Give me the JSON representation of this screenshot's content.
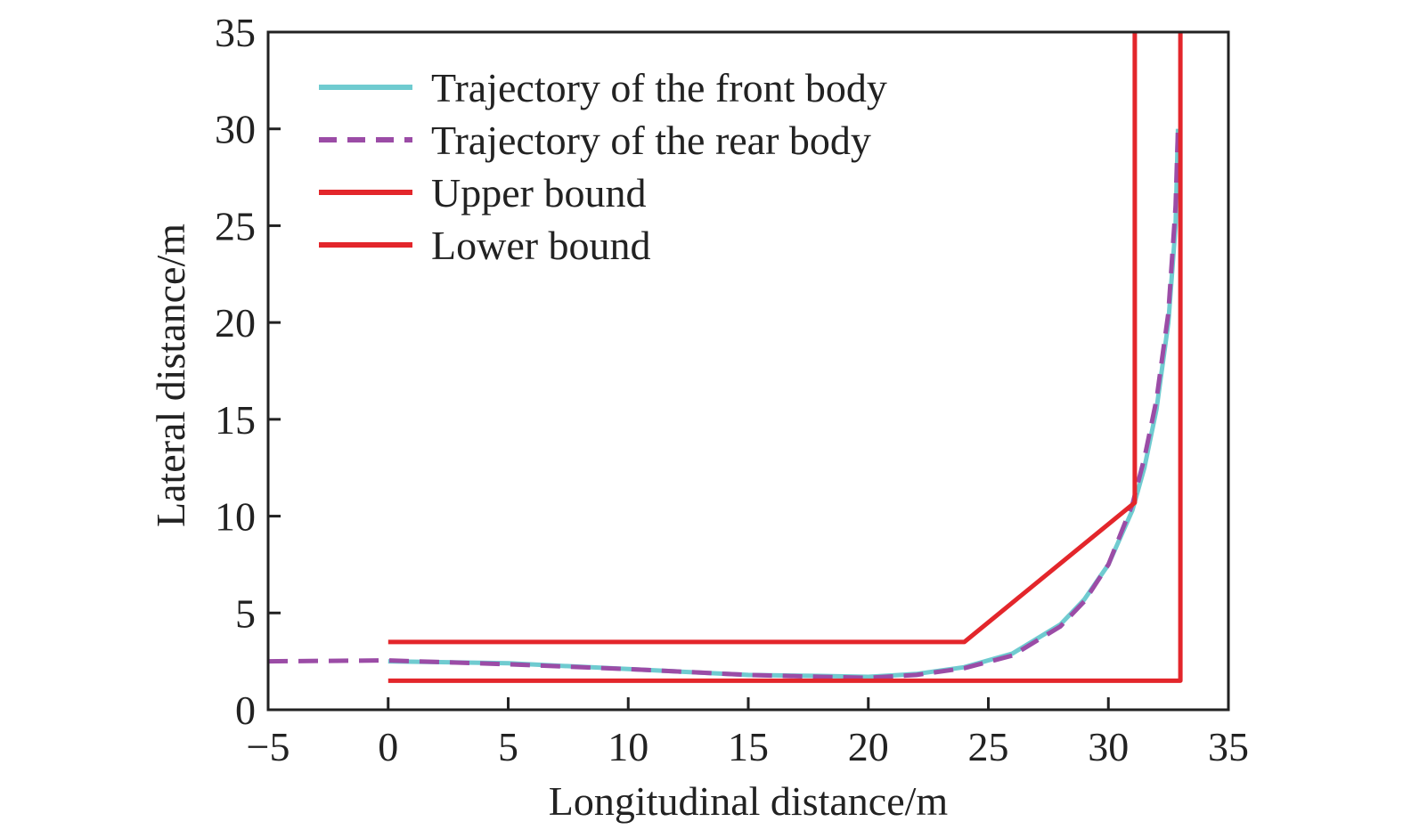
{
  "chart_data": {
    "type": "line",
    "title": "",
    "xlabel": "Longitudinal distance/m",
    "ylabel": "Lateral distance/m",
    "xlim": [
      -5,
      35
    ],
    "ylim": [
      0,
      35
    ],
    "xticks": [
      -5,
      0,
      5,
      10,
      15,
      20,
      25,
      30,
      35
    ],
    "yticks": [
      0,
      5,
      10,
      15,
      20,
      25,
      30,
      35
    ],
    "xtick_labels": [
      "−5",
      "0",
      "5",
      "10",
      "15",
      "20",
      "25",
      "30",
      "35"
    ],
    "ytick_labels": [
      "0",
      "5",
      "10",
      "15",
      "20",
      "25",
      "30",
      "35"
    ],
    "grid": false,
    "legend_position": "top-left",
    "series": [
      {
        "name": "Trajectory of the front body",
        "color": "#6fcbd0",
        "style": "solid",
        "points": [
          [
            0,
            2.5
          ],
          [
            5,
            2.4
          ],
          [
            10,
            2.1
          ],
          [
            15,
            1.8
          ],
          [
            18,
            1.75
          ],
          [
            20,
            1.7
          ],
          [
            22,
            1.85
          ],
          [
            24,
            2.2
          ],
          [
            26,
            2.9
          ],
          [
            28,
            4.4
          ],
          [
            29,
            5.7
          ],
          [
            30,
            7.5
          ],
          [
            31,
            10.3
          ],
          [
            31.5,
            12.5
          ],
          [
            32,
            15.5
          ],
          [
            32.5,
            20
          ],
          [
            32.8,
            25
          ],
          [
            32.9,
            30
          ]
        ]
      },
      {
        "name": "Trajectory of the rear body",
        "color": "#9b4ca6",
        "style": "dashed",
        "points": [
          [
            -5,
            2.5
          ],
          [
            0,
            2.55
          ],
          [
            5,
            2.35
          ],
          [
            10,
            2.1
          ],
          [
            15,
            1.8
          ],
          [
            18,
            1.7
          ],
          [
            20,
            1.65
          ],
          [
            22,
            1.8
          ],
          [
            24,
            2.15
          ],
          [
            26,
            2.8
          ],
          [
            28,
            4.3
          ],
          [
            29,
            5.6
          ],
          [
            30,
            7.5
          ],
          [
            31,
            10.6
          ],
          [
            31.5,
            13
          ],
          [
            32,
            16
          ],
          [
            32.5,
            20.5
          ],
          [
            32.8,
            26
          ],
          [
            32.9,
            30
          ]
        ]
      },
      {
        "name": "Upper bound",
        "color": "#e3262b",
        "style": "solid",
        "points": [
          [
            0,
            3.5
          ],
          [
            24,
            3.5
          ],
          [
            31.1,
            10.7
          ],
          [
            31.1,
            35
          ]
        ]
      },
      {
        "name": "Lower bound",
        "color": "#e3262b",
        "style": "solid",
        "points": [
          [
            0,
            1.5
          ],
          [
            33,
            1.5
          ],
          [
            33,
            35
          ]
        ]
      }
    ]
  }
}
